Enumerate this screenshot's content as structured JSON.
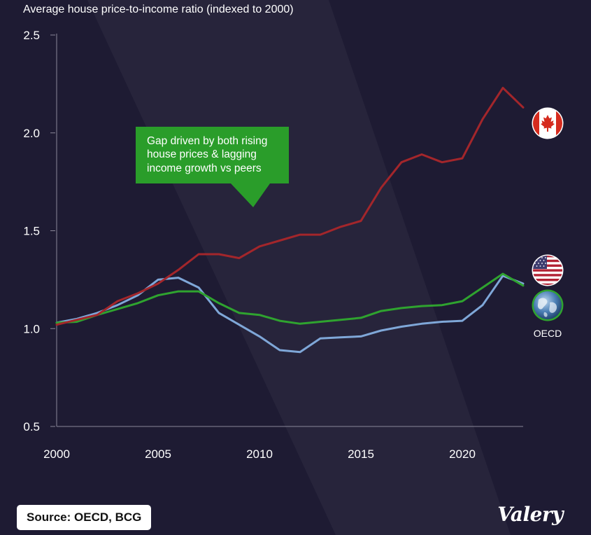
{
  "title": "Average house price-to-income ratio (indexed to 2000)",
  "source": "Source: OECD, BCG",
  "brand": "Valery",
  "annotation": {
    "lines": [
      "Gap driven by both rising",
      "house prices & lagging",
      "income growth vs peers"
    ],
    "color": "#2a9d2a"
  },
  "flags": {
    "canada": "canada-flag-icon",
    "usa": "usa-flag-icon",
    "oecd": "globe-icon",
    "oecd_label": "OECD"
  },
  "chart_data": {
    "type": "line",
    "x": [
      2000,
      2001,
      2002,
      2003,
      2004,
      2005,
      2006,
      2007,
      2008,
      2009,
      2010,
      2011,
      2012,
      2013,
      2014,
      2015,
      2016,
      2017,
      2018,
      2019,
      2020,
      2021,
      2022,
      2023
    ],
    "xticks": [
      2000,
      2005,
      2010,
      2015,
      2020
    ],
    "xtick_labels": [
      "2000",
      "2005",
      "2010",
      "2015",
      "2020"
    ],
    "yticks": [
      0.5,
      1.0,
      1.5,
      2.0,
      2.5
    ],
    "ytick_labels": [
      "0.5",
      "1.0",
      "1.5",
      "2.0",
      "2.5"
    ],
    "xlim": [
      2000,
      2023
    ],
    "ylim": [
      0.5,
      2.5
    ],
    "grid": false,
    "series": [
      {
        "key": "usa",
        "color": "#7fa7d8",
        "values": [
          1.03,
          1.05,
          1.08,
          1.12,
          1.17,
          1.25,
          1.26,
          1.21,
          1.08,
          1.02,
          0.96,
          0.89,
          0.88,
          0.95,
          0.955,
          0.96,
          0.99,
          1.01,
          1.025,
          1.035,
          1.04,
          1.12,
          1.27,
          1.23
        ]
      },
      {
        "key": "oecd",
        "color": "#2fa32f",
        "values": [
          1.03,
          1.035,
          1.07,
          1.1,
          1.13,
          1.17,
          1.19,
          1.19,
          1.13,
          1.08,
          1.07,
          1.04,
          1.025,
          1.035,
          1.045,
          1.055,
          1.09,
          1.105,
          1.115,
          1.12,
          1.14,
          1.21,
          1.28,
          1.22
        ]
      },
      {
        "key": "canada",
        "color": "#a3262b",
        "values": [
          1.02,
          1.045,
          1.07,
          1.14,
          1.18,
          1.23,
          1.3,
          1.38,
          1.38,
          1.36,
          1.42,
          1.45,
          1.48,
          1.48,
          1.52,
          1.55,
          1.72,
          1.85,
          1.89,
          1.85,
          1.87,
          2.07,
          2.23,
          2.13
        ]
      }
    ]
  }
}
